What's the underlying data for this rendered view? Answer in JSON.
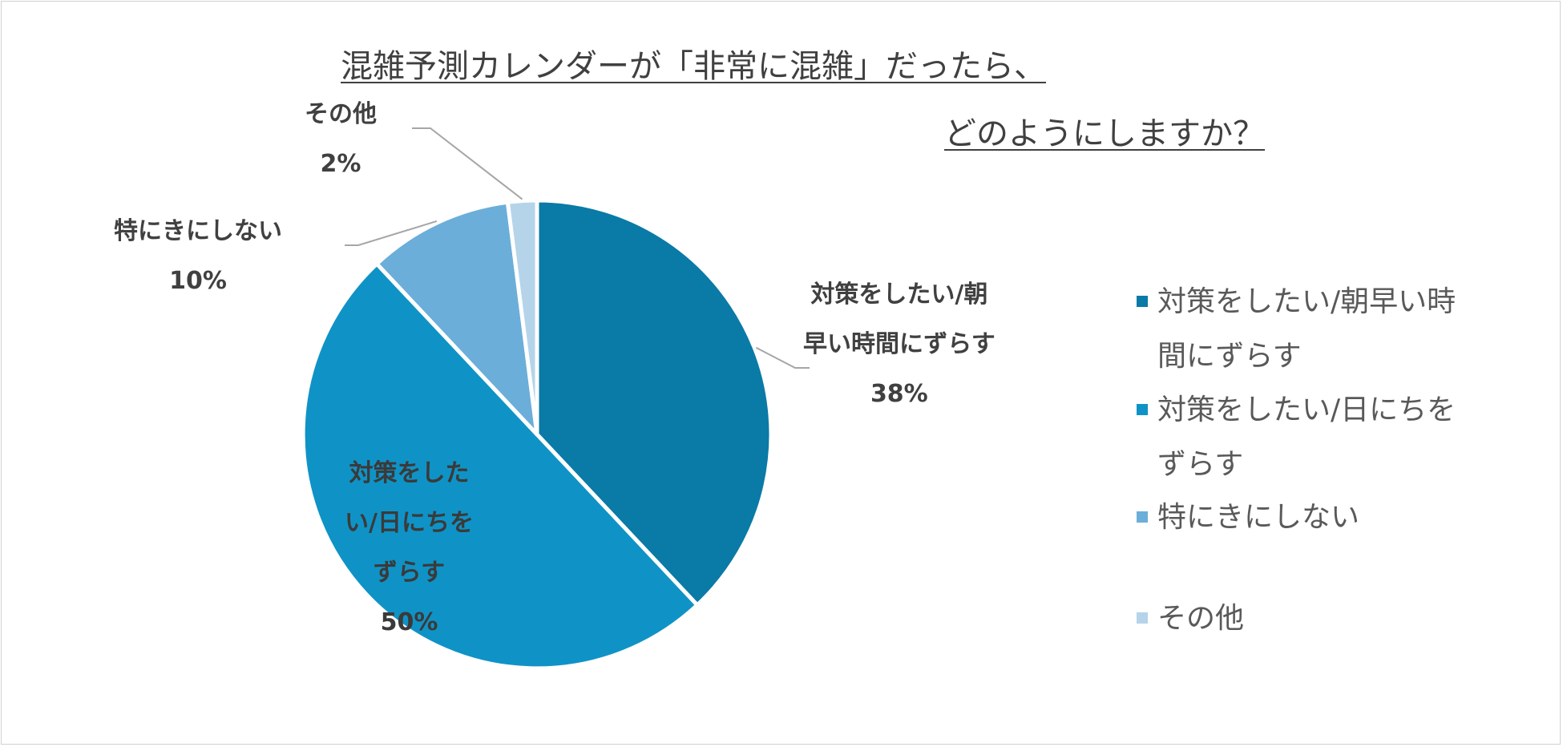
{
  "title": {
    "line1": "混雑予測カレンダーが「非常に混雑」だったら、",
    "line2": "どのようにしますか？"
  },
  "chart_data": {
    "type": "pie",
    "categories": [
      "対策をしたい/朝早い時間にずらす",
      "対策をしたい/日にちをずらす",
      "特にきにしない",
      "その他"
    ],
    "values": [
      38,
      50,
      10,
      2
    ],
    "unit": "%",
    "colors": [
      "#0a7aa6",
      "#0f93c6",
      "#6baed9",
      "#b5d4ea"
    ],
    "legend_position": "right"
  },
  "data_labels": [
    {
      "name_lines": [
        "対策をしたい/朝",
        "早い時間にずらす"
      ],
      "value": "38%"
    },
    {
      "name_lines": [
        "対策をした",
        "い/日にちを",
        "ずらす"
      ],
      "value": "50%"
    },
    {
      "name_lines": [
        "特にきにしない"
      ],
      "value": "10%"
    },
    {
      "name_lines": [
        "その他"
      ],
      "value": "2%"
    }
  ],
  "legend": [
    {
      "lines": [
        "対策をしたい/朝早い時",
        "間にずらす"
      ]
    },
    {
      "lines": [
        "対策をしたい/日にちを",
        "ずらす"
      ]
    },
    {
      "lines": [
        "特にきにしない"
      ]
    },
    {
      "lines": [
        "その他"
      ]
    }
  ]
}
